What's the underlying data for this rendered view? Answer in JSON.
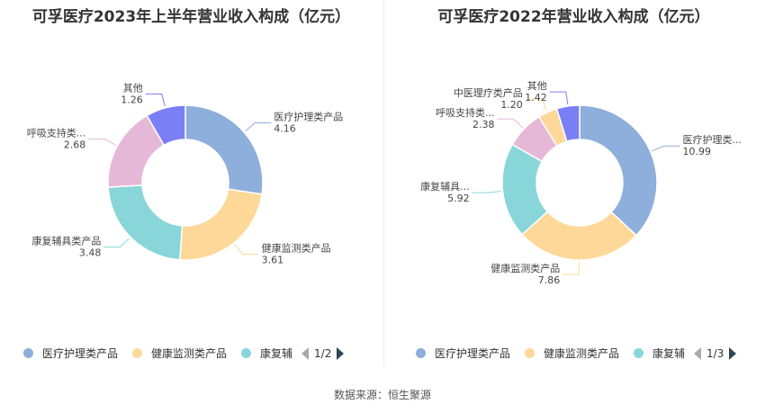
{
  "chart_data": [
    {
      "type": "pie",
      "title": "可孚医疗2023年上半年营业收入构成（亿元）",
      "categories": [
        "医疗护理类产品",
        "健康监测类产品",
        "康复辅具类产品",
        "呼吸支持类产品",
        "其他"
      ],
      "labels": [
        "医疗护理类产品",
        "健康监测类产品",
        "康复辅具类产品",
        "呼吸支持类...",
        "其他"
      ],
      "values": [
        4.16,
        3.61,
        3.48,
        2.68,
        1.26
      ],
      "colors": [
        "#8eaedb",
        "#fdd898",
        "#88d6d9",
        "#e6b8d8",
        "#7b7ff5"
      ],
      "legend": {
        "items": [
          "医疗护理类产品",
          "健康监测类产品",
          "康复辅"
        ],
        "page": "1/2",
        "placement": "bottom"
      }
    },
    {
      "type": "pie",
      "title": "可孚医疗2022年营业收入构成（亿元）",
      "categories": [
        "医疗护理类产品",
        "健康监测类产品",
        "康复辅具类产品",
        "呼吸支持类产品",
        "中医理疗类产品",
        "其他"
      ],
      "labels": [
        "医疗护理类...",
        "健康监测类产品",
        "康复辅具...",
        "呼吸支持类...",
        "中医理疗类产品",
        "其他"
      ],
      "values": [
        10.99,
        7.86,
        5.92,
        2.38,
        1.2,
        1.42
      ],
      "colors": [
        "#8eaedb",
        "#fdd898",
        "#88d6d9",
        "#e6b8d8",
        "#fdd898",
        "#7b7ff5"
      ],
      "legend": {
        "items": [
          "医疗护理类产品",
          "健康监测类产品",
          "康复辅"
        ],
        "page": "1/3",
        "placement": "bottom"
      }
    }
  ],
  "source": "数据来源：恒生聚源"
}
